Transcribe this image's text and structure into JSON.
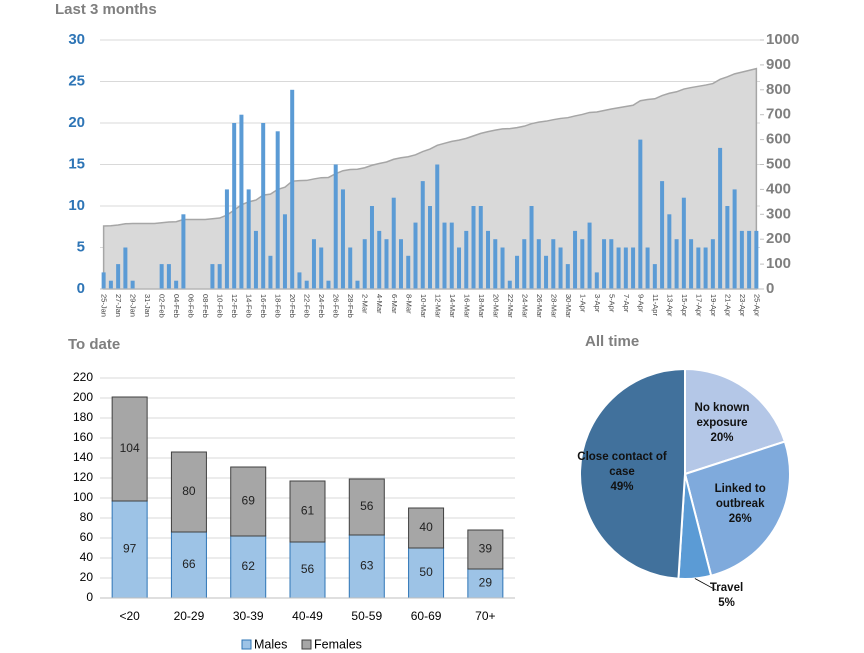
{
  "chart_data": [
    {
      "type": "combo",
      "title": "Last 3 months",
      "categories": [
        "25-Jan",
        null,
        "27-Jan",
        null,
        "29-Jan",
        null,
        "31-Jan",
        null,
        "02-Feb",
        null,
        "04-Feb",
        null,
        "06-Feb",
        null,
        "08-Feb",
        null,
        "10-Feb",
        null,
        "12-Feb",
        null,
        "14-Feb",
        null,
        "16-Feb",
        null,
        "18-Feb",
        null,
        "20-Feb",
        null,
        "22-Feb",
        null,
        "24-Feb",
        null,
        "26-Feb",
        null,
        "28-Feb",
        null,
        "2-Mar",
        null,
        "4-Mar",
        null,
        "6-Mar",
        null,
        "8-Mar",
        null,
        "10-Mar",
        null,
        "12-Mar",
        null,
        "14-Mar",
        null,
        "16-Mar",
        null,
        "18-Mar",
        null,
        "20-Mar",
        null,
        "22-Mar",
        null,
        "24-Mar",
        null,
        "26-Mar",
        null,
        "28-Mar",
        null,
        "30-Mar",
        null,
        "1-Apr",
        null,
        "3-Apr",
        null,
        "5-Apr",
        null,
        "7-Apr",
        null,
        "9-Apr",
        null,
        "11-Apr",
        null,
        "13-Apr",
        null,
        "15-Apr",
        null,
        "17-Apr",
        null,
        "19-Apr",
        null,
        "21-Apr",
        null,
        "23-Apr",
        null,
        "25-Apr"
      ],
      "series": [
        {
          "kind": "bar",
          "color": "#5b9bd5",
          "values": [
            2,
            1,
            3,
            5,
            1,
            0,
            0,
            0,
            3,
            3,
            1,
            9,
            0,
            0,
            0,
            3,
            3,
            12,
            20,
            21,
            12,
            7,
            20,
            4,
            19,
            9,
            24,
            2,
            1,
            6,
            5,
            1,
            15,
            12,
            5,
            1,
            6,
            10,
            7,
            6,
            11,
            6,
            4,
            8,
            13,
            10,
            15,
            8,
            8,
            5,
            7,
            10,
            10,
            7,
            6,
            5,
            1,
            4,
            6,
            10,
            6,
            4,
            6,
            5,
            3,
            7,
            6,
            8,
            2,
            6,
            6,
            5,
            5,
            5,
            18,
            5,
            3,
            13,
            9,
            6,
            11,
            6,
            5,
            5,
            6,
            17,
            10,
            12,
            7,
            7,
            7
          ]
        },
        {
          "kind": "area",
          "axis": "y2",
          "color": "#d9d9d9",
          "values": [
            253,
            254,
            257,
            262,
            263,
            263,
            263,
            263,
            266,
            269,
            270,
            279,
            279,
            279,
            279,
            282,
            285,
            297,
            317,
            338,
            350,
            357,
            377,
            381,
            400,
            409,
            433,
            435,
            436,
            442,
            447,
            448,
            463,
            475,
            480,
            481,
            487,
            497,
            504,
            510,
            521,
            527,
            531,
            539,
            552,
            562,
            577,
            585,
            593,
            598,
            605,
            615,
            625,
            632,
            638,
            643,
            644,
            648,
            654,
            664,
            670,
            674,
            680,
            685,
            688,
            695,
            701,
            709,
            711,
            717,
            723,
            728,
            733,
            738,
            756,
            761,
            764,
            777,
            786,
            792,
            803,
            809,
            814,
            819,
            825,
            842,
            852,
            864,
            871,
            878,
            885
          ]
        }
      ],
      "ylim": [
        0,
        30
      ],
      "yticks": [
        0,
        5,
        10,
        15,
        20,
        25,
        30
      ],
      "y2lim": [
        0,
        1000
      ],
      "y2ticks": [
        0,
        100,
        200,
        300,
        400,
        500,
        600,
        700,
        800,
        900,
        1000
      ],
      "grid": true
    },
    {
      "type": "stacked_bar",
      "title": "To date",
      "categories": [
        "<20",
        "20-29",
        "30-39",
        "40-49",
        "50-59",
        "60-69",
        "70+"
      ],
      "series": [
        {
          "name": "Males",
          "color": "#9dc3e6",
          "values": [
            97,
            66,
            62,
            56,
            63,
            50,
            29
          ]
        },
        {
          "name": "Females",
          "color": "#a6a6a6",
          "values": [
            104,
            80,
            69,
            61,
            56,
            40,
            39
          ]
        }
      ],
      "ylim": [
        0,
        220
      ],
      "yticks": [
        0,
        20,
        40,
        60,
        80,
        100,
        120,
        140,
        160,
        180,
        200,
        220
      ],
      "grid": true,
      "legend": "bottom"
    },
    {
      "type": "pie",
      "title": "All time",
      "categories": [
        "No known exposure",
        "Linked to outbreak",
        "Travel",
        "Close contact of case"
      ],
      "values": [
        20,
        26,
        5,
        49
      ],
      "value_labels": [
        "20%",
        "26%",
        "5%",
        "49%"
      ],
      "colors": [
        "#b4c7e7",
        "#7faadc",
        "#5b9bd5",
        "#41719c"
      ]
    }
  ]
}
